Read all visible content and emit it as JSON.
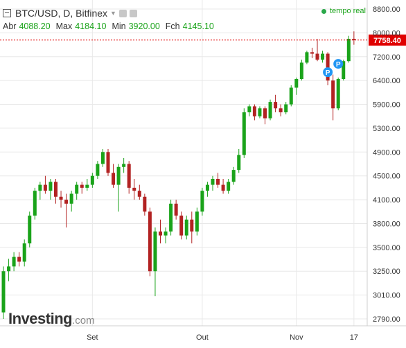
{
  "header": {
    "title": "BTC/USD, D, Bitfinex",
    "live_label": "tempo real"
  },
  "ohlc": {
    "open_label": "Abr",
    "open_value": "4088.20",
    "high_label": "Max",
    "high_value": "4184.10",
    "low_label": "Min",
    "low_value": "3920.00",
    "close_label": "Fch",
    "close_value": "4145.10"
  },
  "logo": {
    "name": "Investing",
    "suffix": ".com"
  },
  "colors": {
    "up": "#1aa31a",
    "down": "#b22222",
    "price_line": "#e00000",
    "grid": "#e8e8e8",
    "marker": "#2196f3"
  },
  "markers": [
    {
      "label": "P",
      "index": 62,
      "price": 6680
    },
    {
      "label": "P",
      "index": 64,
      "price": 6960
    }
  ],
  "chart_data": {
    "type": "candlestick",
    "ylim": [
      2700,
      8800
    ],
    "y_ticks": [
      2790,
      3010,
      3250,
      3500,
      3800,
      4100,
      4500,
      4900,
      5300,
      5900,
      6400,
      7200,
      8000,
      8800
    ],
    "y_tick_labels": [
      "2790.00",
      "3010.00",
      "3250.00",
      "3500.00",
      "3800.00",
      "4100.00",
      "4500.00",
      "4900.00",
      "5300.00",
      "5900.00",
      "6400.00",
      "7200.00",
      "8000.00",
      "8800.00"
    ],
    "x_ticks": [
      {
        "index": 17,
        "label": "Set"
      },
      {
        "index": 38,
        "label": "Out"
      },
      {
        "index": 56,
        "label": "Nov"
      },
      {
        "index": 67,
        "label": "17"
      }
    ],
    "last_price": 7758.4,
    "last_price_label": "7758.40",
    "candles": [
      {
        "o": 2850,
        "h": 3300,
        "l": 2790,
        "c": 3250
      },
      {
        "o": 3250,
        "h": 3380,
        "l": 3150,
        "c": 3300
      },
      {
        "o": 3300,
        "h": 3450,
        "l": 3250,
        "c": 3400
      },
      {
        "o": 3400,
        "h": 3450,
        "l": 3300,
        "c": 3350
      },
      {
        "o": 3350,
        "h": 3600,
        "l": 3300,
        "c": 3550
      },
      {
        "o": 3550,
        "h": 3950,
        "l": 3500,
        "c": 3900
      },
      {
        "o": 3900,
        "h": 4300,
        "l": 3850,
        "c": 4250
      },
      {
        "o": 4250,
        "h": 4400,
        "l": 4100,
        "c": 4350
      },
      {
        "o": 4350,
        "h": 4500,
        "l": 4200,
        "c": 4250
      },
      {
        "o": 4250,
        "h": 4450,
        "l": 4100,
        "c": 4400
      },
      {
        "o": 4400,
        "h": 4450,
        "l": 4050,
        "c": 4150
      },
      {
        "o": 4150,
        "h": 4250,
        "l": 4000,
        "c": 4100
      },
      {
        "o": 4100,
        "h": 4200,
        "l": 3750,
        "c": 4050
      },
      {
        "o": 4050,
        "h": 4250,
        "l": 3950,
        "c": 4200
      },
      {
        "o": 4200,
        "h": 4400,
        "l": 4100,
        "c": 4350
      },
      {
        "o": 4350,
        "h": 4400,
        "l": 4200,
        "c": 4300
      },
      {
        "o": 4300,
        "h": 4450,
        "l": 4250,
        "c": 4350
      },
      {
        "o": 4350,
        "h": 4550,
        "l": 4300,
        "c": 4500
      },
      {
        "o": 4500,
        "h": 4750,
        "l": 4450,
        "c": 4700
      },
      {
        "o": 4700,
        "h": 4950,
        "l": 4650,
        "c": 4900
      },
      {
        "o": 4900,
        "h": 4950,
        "l": 4500,
        "c": 4550
      },
      {
        "o": 4550,
        "h": 4700,
        "l": 4300,
        "c": 4350
      },
      {
        "o": 4350,
        "h": 4700,
        "l": 3950,
        "c": 4650
      },
      {
        "o": 4650,
        "h": 4800,
        "l": 4550,
        "c": 4700
      },
      {
        "o": 4700,
        "h": 4750,
        "l": 4200,
        "c": 4300
      },
      {
        "o": 4300,
        "h": 4450,
        "l": 4100,
        "c": 4250
      },
      {
        "o": 4250,
        "h": 4350,
        "l": 4100,
        "c": 4150
      },
      {
        "o": 4150,
        "h": 4200,
        "l": 3900,
        "c": 3950
      },
      {
        "o": 3950,
        "h": 4000,
        "l": 3200,
        "c": 3250
      },
      {
        "o": 3250,
        "h": 3750,
        "l": 3000,
        "c": 3700
      },
      {
        "o": 3700,
        "h": 3850,
        "l": 3550,
        "c": 3650
      },
      {
        "o": 3650,
        "h": 3750,
        "l": 3550,
        "c": 3700
      },
      {
        "o": 3700,
        "h": 4100,
        "l": 3650,
        "c": 4050
      },
      {
        "o": 4050,
        "h": 4100,
        "l": 3850,
        "c": 3900
      },
      {
        "o": 3900,
        "h": 3950,
        "l": 3600,
        "c": 3650
      },
      {
        "o": 3650,
        "h": 3900,
        "l": 3600,
        "c": 3850
      },
      {
        "o": 3850,
        "h": 3950,
        "l": 3550,
        "c": 3700
      },
      {
        "o": 3700,
        "h": 4000,
        "l": 3650,
        "c": 3950
      },
      {
        "o": 3950,
        "h": 4300,
        "l": 3900,
        "c": 4250
      },
      {
        "o": 4250,
        "h": 4400,
        "l": 4150,
        "c": 4350
      },
      {
        "o": 4350,
        "h": 4500,
        "l": 4250,
        "c": 4450
      },
      {
        "o": 4450,
        "h": 4550,
        "l": 4300,
        "c": 4350
      },
      {
        "o": 4350,
        "h": 4450,
        "l": 4200,
        "c": 4250
      },
      {
        "o": 4250,
        "h": 4450,
        "l": 4200,
        "c": 4400
      },
      {
        "o": 4400,
        "h": 4650,
        "l": 4350,
        "c": 4600
      },
      {
        "o": 4600,
        "h": 4950,
        "l": 4550,
        "c": 4850
      },
      {
        "o": 4850,
        "h": 5800,
        "l": 4800,
        "c": 5700
      },
      {
        "o": 5700,
        "h": 5900,
        "l": 5600,
        "c": 5850
      },
      {
        "o": 5850,
        "h": 5900,
        "l": 5500,
        "c": 5600
      },
      {
        "o": 5600,
        "h": 5850,
        "l": 5550,
        "c": 5800
      },
      {
        "o": 5800,
        "h": 5850,
        "l": 5400,
        "c": 5550
      },
      {
        "o": 5550,
        "h": 6000,
        "l": 5500,
        "c": 5950
      },
      {
        "o": 5950,
        "h": 6100,
        "l": 5700,
        "c": 5800
      },
      {
        "o": 5800,
        "h": 5900,
        "l": 5600,
        "c": 5700
      },
      {
        "o": 5700,
        "h": 5950,
        "l": 5650,
        "c": 5900
      },
      {
        "o": 5900,
        "h": 6300,
        "l": 5850,
        "c": 6250
      },
      {
        "o": 6250,
        "h": 6500,
        "l": 6100,
        "c": 6450
      },
      {
        "o": 6450,
        "h": 7100,
        "l": 6400,
        "c": 7000
      },
      {
        "o": 7000,
        "h": 7400,
        "l": 6950,
        "c": 7350
      },
      {
        "o": 7350,
        "h": 7500,
        "l": 7150,
        "c": 7300
      },
      {
        "o": 7300,
        "h": 7800,
        "l": 7050,
        "c": 7100
      },
      {
        "o": 7100,
        "h": 7400,
        "l": 7000,
        "c": 7300
      },
      {
        "o": 7300,
        "h": 7350,
        "l": 6300,
        "c": 6400
      },
      {
        "o": 6400,
        "h": 6600,
        "l": 5500,
        "c": 5800
      },
      {
        "o": 5800,
        "h": 6500,
        "l": 5750,
        "c": 6450
      },
      {
        "o": 6450,
        "h": 7100,
        "l": 6400,
        "c": 7050
      },
      {
        "o": 7050,
        "h": 7900,
        "l": 7000,
        "c": 7800
      },
      {
        "o": 7800,
        "h": 8050,
        "l": 7600,
        "c": 7758.4
      }
    ]
  }
}
